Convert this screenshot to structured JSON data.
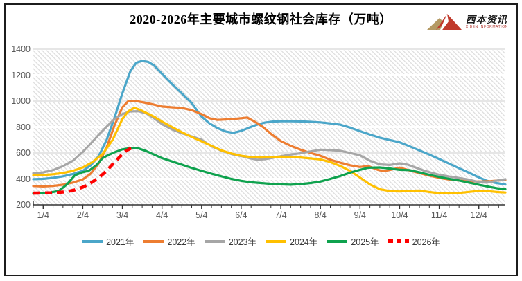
{
  "header": {
    "title": "2020-2026年主要城市螺纹钢社会库存（万吨）",
    "logo": {
      "name": "西本资讯",
      "subtext": "XIBEN INFORMATION",
      "mountain_left_color": "#b49a64",
      "mountain_right_color": "#c0392b"
    }
  },
  "chart_data": {
    "type": "line",
    "title": "2020-2026年主要城市螺纹钢社会库存（万吨）",
    "xlabel": "",
    "ylabel": "万吨",
    "ylim": [
      200,
      1400
    ],
    "yticks": [
      1400,
      1200,
      1000,
      800,
      600,
      400,
      200
    ],
    "xticks": [
      "1/4",
      "2/4",
      "3/4",
      "4/4",
      "5/4",
      "6/4",
      "7/4",
      "8/4",
      "9/4",
      "10/4",
      "11/4",
      "12/4"
    ],
    "x_range_months": [
      0.75,
      12.67
    ],
    "grid": "horizontal",
    "background": "diagonal-hatch",
    "legend_position": "bottom",
    "axis_color": "#333333",
    "gridline_color": "#cccccc",
    "series": [
      {
        "name": "2021年",
        "color": "#4BA6C9",
        "style": "solid",
        "points": [
          [
            0.75,
            398
          ],
          [
            1,
            400
          ],
          [
            1.25,
            408
          ],
          [
            1.5,
            420
          ],
          [
            1.75,
            438
          ],
          [
            2,
            462
          ],
          [
            2.2,
            505
          ],
          [
            2.4,
            575
          ],
          [
            2.6,
            700
          ],
          [
            2.8,
            870
          ],
          [
            3,
            1060
          ],
          [
            3.2,
            1230
          ],
          [
            3.35,
            1295
          ],
          [
            3.5,
            1310
          ],
          [
            3.65,
            1302
          ],
          [
            3.8,
            1275
          ],
          [
            4,
            1210
          ],
          [
            4.25,
            1132
          ],
          [
            4.5,
            1060
          ],
          [
            4.75,
            985
          ],
          [
            5,
            880
          ],
          [
            5.2,
            828
          ],
          [
            5.4,
            792
          ],
          [
            5.6,
            766
          ],
          [
            5.8,
            755
          ],
          [
            6,
            770
          ],
          [
            6.2,
            796
          ],
          [
            6.4,
            818
          ],
          [
            6.6,
            834
          ],
          [
            6.8,
            842
          ],
          [
            7,
            845
          ],
          [
            7.25,
            845
          ],
          [
            7.5,
            843
          ],
          [
            7.75,
            840
          ],
          [
            8,
            836
          ],
          [
            8.25,
            828
          ],
          [
            8.5,
            818
          ],
          [
            8.75,
            796
          ],
          [
            9,
            768
          ],
          [
            9.25,
            742
          ],
          [
            9.5,
            718
          ],
          [
            9.75,
            700
          ],
          [
            10,
            682
          ],
          [
            10.25,
            652
          ],
          [
            10.5,
            620
          ],
          [
            10.75,
            588
          ],
          [
            11,
            553
          ],
          [
            11.25,
            518
          ],
          [
            11.5,
            482
          ],
          [
            11.75,
            448
          ],
          [
            12,
            412
          ],
          [
            12.2,
            386
          ],
          [
            12.4,
            370
          ],
          [
            12.67,
            357
          ]
        ]
      },
      {
        "name": "2022年",
        "color": "#ED7D31",
        "style": "solid",
        "points": [
          [
            0.75,
            345
          ],
          [
            1,
            342
          ],
          [
            1.25,
            346
          ],
          [
            1.5,
            355
          ],
          [
            1.75,
            372
          ],
          [
            2,
            396
          ],
          [
            2.2,
            440
          ],
          [
            2.4,
            520
          ],
          [
            2.6,
            640
          ],
          [
            2.8,
            812
          ],
          [
            3,
            952
          ],
          [
            3.15,
            1000
          ],
          [
            3.35,
            1000
          ],
          [
            3.5,
            992
          ],
          [
            3.75,
            976
          ],
          [
            4,
            958
          ],
          [
            4.25,
            952
          ],
          [
            4.5,
            947
          ],
          [
            4.75,
            930
          ],
          [
            5,
            900
          ],
          [
            5.2,
            868
          ],
          [
            5.4,
            855
          ],
          [
            5.6,
            858
          ],
          [
            5.8,
            862
          ],
          [
            6,
            868
          ],
          [
            6.15,
            873
          ],
          [
            6.35,
            840
          ],
          [
            6.55,
            800
          ],
          [
            6.75,
            748
          ],
          [
            7,
            692
          ],
          [
            7.25,
            655
          ],
          [
            7.5,
            625
          ],
          [
            7.75,
            600
          ],
          [
            8,
            578
          ],
          [
            8.25,
            548
          ],
          [
            8.5,
            525
          ],
          [
            8.75,
            505
          ],
          [
            9,
            492
          ],
          [
            9.2,
            500
          ],
          [
            9.45,
            470
          ],
          [
            9.6,
            460
          ],
          [
            9.8,
            472
          ],
          [
            10,
            487
          ],
          [
            10.25,
            465
          ],
          [
            10.5,
            445
          ],
          [
            10.75,
            425
          ],
          [
            11,
            408
          ],
          [
            11.25,
            395
          ],
          [
            11.5,
            388
          ],
          [
            11.75,
            382
          ],
          [
            12,
            380
          ],
          [
            12.3,
            383
          ],
          [
            12.67,
            392
          ]
        ]
      },
      {
        "name": "2023年",
        "color": "#A6A6A6",
        "style": "solid",
        "points": [
          [
            0.75,
            443
          ],
          [
            1,
            450
          ],
          [
            1.25,
            468
          ],
          [
            1.5,
            498
          ],
          [
            1.75,
            540
          ],
          [
            2,
            608
          ],
          [
            2.2,
            672
          ],
          [
            2.4,
            740
          ],
          [
            2.6,
            802
          ],
          [
            2.8,
            862
          ],
          [
            3,
            900
          ],
          [
            3.2,
            920
          ],
          [
            3.4,
            922
          ],
          [
            3.6,
            905
          ],
          [
            3.8,
            868
          ],
          [
            4,
            822
          ],
          [
            4.25,
            782
          ],
          [
            4.5,
            752
          ],
          [
            4.75,
            728
          ],
          [
            5,
            702
          ],
          [
            5.25,
            652
          ],
          [
            5.5,
            618
          ],
          [
            5.75,
            592
          ],
          [
            6,
            576
          ],
          [
            6.2,
            560
          ],
          [
            6.4,
            548
          ],
          [
            6.6,
            552
          ],
          [
            6.8,
            562
          ],
          [
            7,
            575
          ],
          [
            7.25,
            588
          ],
          [
            7.5,
            598
          ],
          [
            7.75,
            612
          ],
          [
            8,
            625
          ],
          [
            8.25,
            622
          ],
          [
            8.5,
            617
          ],
          [
            8.75,
            600
          ],
          [
            9,
            582
          ],
          [
            9.25,
            540
          ],
          [
            9.5,
            512
          ],
          [
            9.75,
            507
          ],
          [
            10,
            520
          ],
          [
            10.2,
            510
          ],
          [
            10.4,
            488
          ],
          [
            10.6,
            465
          ],
          [
            10.8,
            448
          ],
          [
            11,
            432
          ],
          [
            11.25,
            418
          ],
          [
            11.5,
            407
          ],
          [
            11.75,
            394
          ],
          [
            12,
            375
          ],
          [
            12.2,
            371
          ],
          [
            12.45,
            386
          ],
          [
            12.67,
            398
          ]
        ]
      },
      {
        "name": "2024年",
        "color": "#FFC000",
        "style": "solid",
        "points": [
          [
            0.75,
            427
          ],
          [
            1,
            430
          ],
          [
            1.25,
            436
          ],
          [
            1.5,
            446
          ],
          [
            1.75,
            462
          ],
          [
            2,
            488
          ],
          [
            2.25,
            530
          ],
          [
            2.5,
            592
          ],
          [
            2.75,
            700
          ],
          [
            3,
            862
          ],
          [
            3.15,
            922
          ],
          [
            3.3,
            948
          ],
          [
            3.45,
            932
          ],
          [
            3.6,
            910
          ],
          [
            3.8,
            880
          ],
          [
            4,
            842
          ],
          [
            4.25,
            800
          ],
          [
            4.5,
            760
          ],
          [
            4.75,
            724
          ],
          [
            5,
            690
          ],
          [
            5.25,
            655
          ],
          [
            5.5,
            620
          ],
          [
            5.75,
            596
          ],
          [
            6,
            578
          ],
          [
            6.25,
            568
          ],
          [
            6.5,
            565
          ],
          [
            6.75,
            568
          ],
          [
            7,
            571
          ],
          [
            7.25,
            569
          ],
          [
            7.5,
            565
          ],
          [
            7.75,
            558
          ],
          [
            8,
            550
          ],
          [
            8.25,
            530
          ],
          [
            8.5,
            500
          ],
          [
            8.75,
            462
          ],
          [
            9,
            410
          ],
          [
            9.25,
            358
          ],
          [
            9.5,
            320
          ],
          [
            9.75,
            306
          ],
          [
            10,
            303
          ],
          [
            10.25,
            308
          ],
          [
            10.5,
            310
          ],
          [
            10.75,
            299
          ],
          [
            11,
            290
          ],
          [
            11.25,
            288
          ],
          [
            11.5,
            292
          ],
          [
            11.75,
            300
          ],
          [
            12,
            307
          ],
          [
            12.25,
            305
          ],
          [
            12.5,
            298
          ],
          [
            12.67,
            295
          ]
        ]
      },
      {
        "name": "2025年",
        "color": "#0FA24E",
        "style": "solid",
        "points": [
          [
            0.75,
            288
          ],
          [
            1,
            291
          ],
          [
            1.2,
            296
          ],
          [
            1.4,
            308
          ],
          [
            1.6,
            358
          ],
          [
            1.8,
            428
          ],
          [
            2,
            452
          ],
          [
            2.15,
            462
          ],
          [
            2.35,
            508
          ],
          [
            2.5,
            560
          ],
          [
            2.65,
            585
          ],
          [
            2.8,
            605
          ],
          [
            3,
            628
          ],
          [
            3.2,
            638
          ],
          [
            3.4,
            636
          ],
          [
            3.6,
            615
          ],
          [
            3.8,
            588
          ],
          [
            4,
            560
          ],
          [
            4.25,
            535
          ],
          [
            4.5,
            510
          ],
          [
            4.75,
            485
          ],
          [
            5,
            462
          ],
          [
            5.25,
            440
          ],
          [
            5.5,
            420
          ],
          [
            5.75,
            400
          ],
          [
            6,
            385
          ],
          [
            6.25,
            374
          ],
          [
            6.5,
            368
          ],
          [
            6.75,
            362
          ],
          [
            7,
            358
          ],
          [
            7.25,
            355
          ],
          [
            7.5,
            360
          ],
          [
            7.75,
            368
          ],
          [
            8,
            380
          ],
          [
            8.25,
            400
          ],
          [
            8.5,
            422
          ],
          [
            8.75,
            448
          ],
          [
            9,
            470
          ],
          [
            9.2,
            486
          ],
          [
            9.5,
            488
          ],
          [
            9.75,
            480
          ],
          [
            10,
            470
          ],
          [
            10.25,
            468
          ],
          [
            10.5,
            450
          ],
          [
            10.75,
            432
          ],
          [
            11,
            415
          ],
          [
            11.25,
            400
          ],
          [
            11.5,
            388
          ],
          [
            11.75,
            372
          ],
          [
            12,
            355
          ],
          [
            12.25,
            340
          ],
          [
            12.5,
            326
          ],
          [
            12.67,
            320
          ]
        ]
      },
      {
        "name": "2026年",
        "color": "#FE0000",
        "style": "dashed",
        "points": [
          [
            0.75,
            290
          ],
          [
            1,
            292
          ],
          [
            1.2,
            293
          ],
          [
            1.4,
            296
          ],
          [
            1.6,
            302
          ],
          [
            1.8,
            315
          ],
          [
            2,
            336
          ],
          [
            2.2,
            368
          ],
          [
            2.4,
            408
          ],
          [
            2.6,
            462
          ],
          [
            2.8,
            528
          ],
          [
            3,
            590
          ],
          [
            3.1,
            618
          ],
          [
            3.25,
            642
          ]
        ]
      }
    ]
  }
}
